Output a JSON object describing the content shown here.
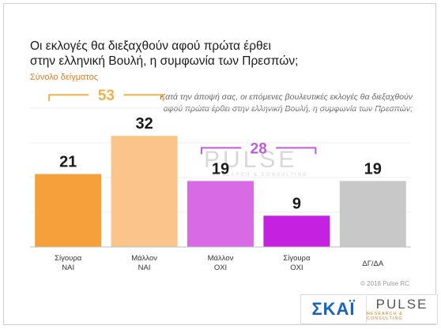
{
  "header": {
    "title_line1": "Οι εκλογές θα διεξαχθούν αφού πρώτα έρθει",
    "title_line2": "στην ελληνική Βουλή, η συμφωνία των Πρεσπών;",
    "subtitle": "Σύνολο δείγματος",
    "question_line1": "Κατά την άποψή σας, οι επόμενες βουλευτικές εκλογές θα διεξαχθούν",
    "question_line2": "αφού πρώτα έρθει στην ελληνική Βουλή, η συμφωνία των Πρεσπών;"
  },
  "watermark": {
    "main": "PULSE",
    "sub": "RESEARCH & CONSULTING"
  },
  "copyright": "© 2018 Pulse RC",
  "logos": {
    "skai": "ΣΚΑΪ",
    "pulse": "PULSE",
    "pulse_sub": "RESEARCH & CONSULTING"
  },
  "chart_data": {
    "type": "bar",
    "categories": [
      [
        "Σίγουρα",
        "ΝΑΙ"
      ],
      [
        "Μάλλον",
        "ΝΑΙ"
      ],
      [
        "Μάλλον",
        "ΟΧΙ"
      ],
      [
        "Σίγουρα",
        "ΟΧΙ"
      ],
      [
        "ΔΓ/ΔΑ"
      ]
    ],
    "values": [
      21,
      32,
      19,
      9,
      19
    ],
    "colors": [
      "#f5a03a",
      "#fbc48a",
      "#d86ae6",
      "#c422e0",
      "#c8c8c8"
    ],
    "ylim": [
      0,
      40
    ],
    "grid": true,
    "groups": [
      {
        "label": "53",
        "from": 0,
        "to": 1,
        "color": "#f5b04a"
      },
      {
        "label": "28",
        "from": 2,
        "to": 3,
        "color": "#c45ad8"
      }
    ]
  }
}
